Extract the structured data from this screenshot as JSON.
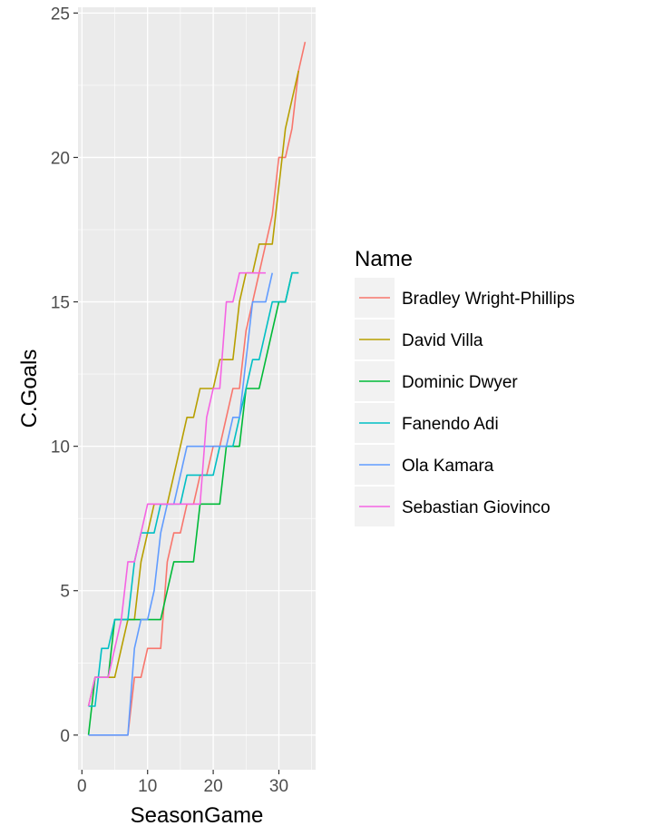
{
  "chart_data": {
    "type": "line",
    "xlabel": "SeasonGame",
    "ylabel": "C.Goals",
    "xlim": [
      -0.6,
      35.6
    ],
    "ylim": [
      -1.2,
      25.2
    ],
    "xticks": [
      0,
      10,
      20,
      30
    ],
    "yticks": [
      0,
      5,
      10,
      15,
      20,
      25
    ],
    "xtick_labels": [
      "0",
      "10",
      "20",
      "30"
    ],
    "ytick_labels": [
      "0",
      "5",
      "10",
      "15",
      "20",
      "25"
    ],
    "grid": true,
    "panel_background": "#ebebeb",
    "grid_color": "#ffffff",
    "legend": {
      "title": "Name",
      "position": "right"
    },
    "series": [
      {
        "name": "Bradley Wright-Phillips",
        "color": "#F8766D",
        "x": [
          1,
          2,
          3,
          4,
          5,
          6,
          7,
          8,
          9,
          10,
          11,
          12,
          13,
          14,
          15,
          16,
          17,
          18,
          19,
          20,
          21,
          22,
          23,
          24,
          25,
          26,
          27,
          28,
          29,
          30,
          31,
          32,
          33,
          34
        ],
        "y": [
          0,
          0,
          0,
          0,
          0,
          0,
          0,
          2,
          2,
          3,
          3,
          3,
          6,
          7,
          7,
          8,
          8,
          9,
          9,
          10,
          10,
          11,
          12,
          12,
          14,
          15,
          16,
          17,
          18,
          20,
          20,
          21,
          23,
          24
        ]
      },
      {
        "name": "David Villa",
        "color": "#B79F00",
        "x": [
          1,
          2,
          3,
          4,
          5,
          6,
          7,
          8,
          9,
          10,
          11,
          12,
          13,
          14,
          15,
          16,
          17,
          18,
          19,
          20,
          21,
          22,
          23,
          24,
          25,
          26,
          27,
          28,
          29,
          30,
          31,
          32,
          33
        ],
        "y": [
          1,
          2,
          2,
          2,
          2,
          3,
          4,
          4,
          6,
          7,
          8,
          8,
          8,
          9,
          10,
          11,
          11,
          12,
          12,
          12,
          13,
          13,
          13,
          15,
          16,
          16,
          17,
          17,
          17,
          19,
          21,
          22,
          23
        ]
      },
      {
        "name": "Dominic Dwyer",
        "color": "#00BA38",
        "x": [
          1,
          2,
          3,
          4,
          5,
          6,
          7,
          8,
          9,
          10,
          11,
          12,
          13,
          14,
          15,
          16,
          17,
          18,
          19,
          20,
          21,
          22,
          23,
          24,
          25,
          26,
          27,
          28,
          29,
          30,
          31,
          32,
          33
        ],
        "y": [
          0,
          2,
          2,
          2,
          4,
          4,
          4,
          4,
          4,
          4,
          4,
          4,
          5,
          6,
          6,
          6,
          6,
          8,
          8,
          8,
          8,
          10,
          10,
          10,
          12,
          12,
          12,
          13,
          14,
          15,
          15,
          16,
          16
        ]
      },
      {
        "name": "Fanendo Adi",
        "color": "#00BFC4",
        "x": [
          1,
          2,
          3,
          4,
          5,
          6,
          7,
          8,
          9,
          10,
          11,
          12,
          13,
          14,
          15,
          16,
          17,
          18,
          19,
          20,
          21,
          22,
          23,
          24,
          25,
          26,
          27,
          28,
          29,
          30,
          31,
          32,
          33
        ],
        "y": [
          1,
          1,
          3,
          3,
          4,
          4,
          4,
          6,
          7,
          7,
          7,
          8,
          8,
          8,
          8,
          9,
          9,
          9,
          9,
          9,
          10,
          10,
          10,
          11,
          12,
          13,
          13,
          14,
          15,
          15,
          15,
          16,
          16
        ]
      },
      {
        "name": "Ola Kamara",
        "color": "#619CFF",
        "x": [
          1,
          2,
          3,
          4,
          5,
          6,
          7,
          8,
          9,
          10,
          11,
          12,
          13,
          14,
          15,
          16,
          17,
          18,
          19,
          20,
          21,
          22,
          23,
          24,
          25,
          26,
          27,
          28,
          29
        ],
        "y": [
          0,
          0,
          0,
          0,
          0,
          0,
          0,
          3,
          4,
          4,
          5,
          7,
          8,
          8,
          9,
          10,
          10,
          10,
          10,
          10,
          10,
          10,
          11,
          11,
          13,
          15,
          15,
          15,
          16
        ]
      },
      {
        "name": "Sebastian Giovinco",
        "color": "#F564E3",
        "x": [
          1,
          2,
          3,
          4,
          5,
          6,
          7,
          8,
          9,
          10,
          11,
          12,
          13,
          14,
          15,
          16,
          17,
          18,
          19,
          20,
          21,
          22,
          23,
          24,
          25,
          26,
          27,
          28
        ],
        "y": [
          1,
          2,
          2,
          2,
          3,
          4,
          6,
          6,
          7,
          8,
          8,
          8,
          8,
          8,
          8,
          8,
          8,
          8,
          11,
          12,
          12,
          15,
          15,
          16,
          16,
          16,
          16,
          16
        ]
      }
    ]
  }
}
